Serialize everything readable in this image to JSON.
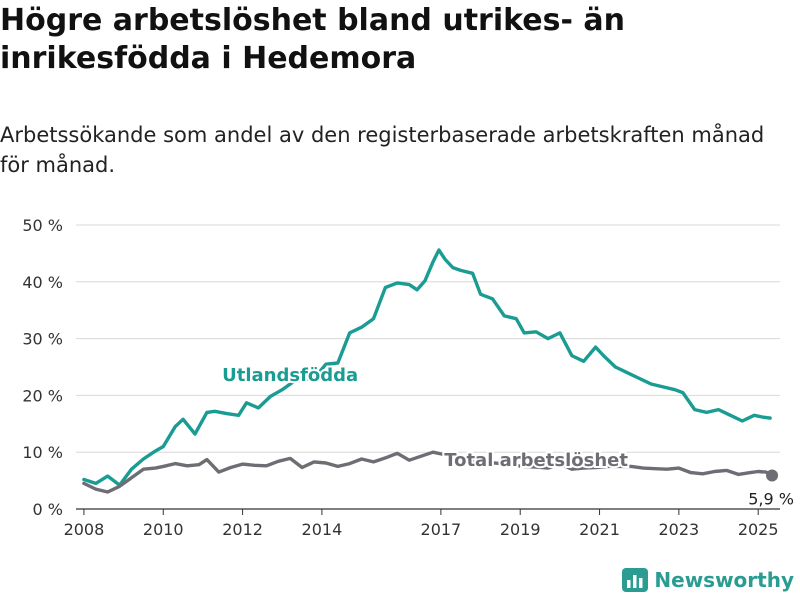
{
  "title": "Högre arbetslöshet bland utrikes- än inrikesfödda i Hedemora",
  "subtitle": "Arbetssökande som andel av den registerbaserade arbetskraften månad för månad.",
  "logo_text": "Newsworthy",
  "colors": {
    "foreign": "#1a9c92",
    "total": "#6f6d74",
    "grid": "#d8d8d8",
    "axis": "#333333"
  },
  "chart_data": {
    "type": "line",
    "title": "Högre arbetslöshet bland utrikes- än inrikesfödda i Hedemora",
    "subtitle": "Arbetssökande som andel av den registerbaserade arbetskraften månad för månad.",
    "xlabel": "",
    "ylabel": "",
    "ylim": [
      0,
      50
    ],
    "xlim": [
      2007.8,
      2025.55
    ],
    "grid": true,
    "y_ticks": [
      0,
      10,
      20,
      30,
      40,
      50
    ],
    "y_tick_labels": [
      "0 %",
      "10 %",
      "20 %",
      "30 %",
      "40 %",
      "50 %"
    ],
    "x_ticks": [
      2008,
      2010,
      2012,
      2014,
      2017,
      2019,
      2021,
      2023,
      2025
    ],
    "x_tick_labels": [
      "2008",
      "2010",
      "2012",
      "2014",
      "2017",
      "2019",
      "2021",
      "2023",
      "2025"
    ],
    "end_label": "5,9 %",
    "series": [
      {
        "name": "Utlandsfödda",
        "x": [
          2008.0,
          2008.3,
          2008.6,
          2008.9,
          2009.2,
          2009.5,
          2009.8,
          2010.0,
          2010.3,
          2010.5,
          2010.8,
          2011.1,
          2011.3,
          2011.6,
          2011.9,
          2012.1,
          2012.4,
          2012.7,
          2013.0,
          2013.3,
          2013.6,
          2013.9,
          2014.1,
          2014.4,
          2014.7,
          2015.0,
          2015.3,
          2015.6,
          2015.9,
          2016.2,
          2016.4,
          2016.6,
          2016.8,
          2016.95,
          2017.1,
          2017.3,
          2017.5,
          2017.8,
          2018.0,
          2018.3,
          2018.6,
          2018.9,
          2019.1,
          2019.4,
          2019.7,
          2020.0,
          2020.3,
          2020.6,
          2020.9,
          2021.1,
          2021.4,
          2021.7,
          2022.0,
          2022.3,
          2022.6,
          2022.9,
          2023.1,
          2023.4,
          2023.7,
          2024.0,
          2024.3,
          2024.6,
          2024.9,
          2025.1,
          2025.3
        ],
        "values": [
          5.2,
          4.5,
          5.8,
          4.2,
          7.0,
          8.8,
          10.2,
          11.0,
          14.5,
          15.8,
          13.2,
          17.0,
          17.2,
          16.8,
          16.5,
          18.7,
          17.8,
          19.8,
          21.0,
          22.5,
          22.8,
          23.8,
          25.5,
          25.7,
          31.0,
          32.0,
          33.5,
          39.0,
          39.8,
          39.5,
          38.6,
          40.2,
          43.5,
          45.6,
          44.0,
          42.5,
          42.0,
          41.5,
          37.8,
          37.0,
          34.0,
          33.5,
          31.0,
          31.2,
          30.0,
          31.0,
          27.0,
          26.0,
          28.5,
          27.0,
          25.0,
          24.0,
          23.0,
          22.0,
          21.5,
          21.0,
          20.5,
          17.5,
          17.0,
          17.5,
          16.5,
          15.5,
          16.5,
          16.2,
          16.0
        ]
      },
      {
        "name": "Total arbetslöshet",
        "x": [
          2008.0,
          2008.3,
          2008.6,
          2008.9,
          2009.2,
          2009.5,
          2009.8,
          2010.0,
          2010.3,
          2010.6,
          2010.9,
          2011.1,
          2011.4,
          2011.7,
          2012.0,
          2012.3,
          2012.6,
          2012.9,
          2013.2,
          2013.5,
          2013.8,
          2014.1,
          2014.4,
          2014.7,
          2015.0,
          2015.3,
          2015.6,
          2015.9,
          2016.2,
          2016.5,
          2016.8,
          2017.0,
          2017.3,
          2017.6,
          2017.9,
          2018.2,
          2018.5,
          2018.8,
          2019.1,
          2019.4,
          2019.7,
          2020.0,
          2020.3,
          2020.6,
          2020.9,
          2021.2,
          2021.5,
          2021.8,
          2022.1,
          2022.4,
          2022.7,
          2023.0,
          2023.3,
          2023.6,
          2023.9,
          2024.2,
          2024.5,
          2024.8,
          2025.0,
          2025.2,
          2025.35
        ],
        "values": [
          4.5,
          3.5,
          3.0,
          4.0,
          5.5,
          7.0,
          7.2,
          7.5,
          8.0,
          7.6,
          7.8,
          8.7,
          6.5,
          7.3,
          7.9,
          7.7,
          7.6,
          8.4,
          8.9,
          7.3,
          8.3,
          8.1,
          7.5,
          8.0,
          8.8,
          8.3,
          9.0,
          9.8,
          8.6,
          9.3,
          10.0,
          9.7,
          9.2,
          8.7,
          8.4,
          8.2,
          8.0,
          7.7,
          7.5,
          7.4,
          7.2,
          8.0,
          7.0,
          7.2,
          7.3,
          7.5,
          7.5,
          7.5,
          7.2,
          7.1,
          7.0,
          7.2,
          6.4,
          6.2,
          6.6,
          6.8,
          6.1,
          6.4,
          6.6,
          6.5,
          5.9
        ]
      }
    ],
    "annotations": [
      {
        "text": "Utlandsfödda",
        "x": 2013.2,
        "y": 22.5,
        "series": "Utlandsfödda"
      },
      {
        "text": "Total arbetslöshet",
        "x": 2019.4,
        "y": 7.6,
        "series": "Total arbetslöshet"
      }
    ]
  }
}
